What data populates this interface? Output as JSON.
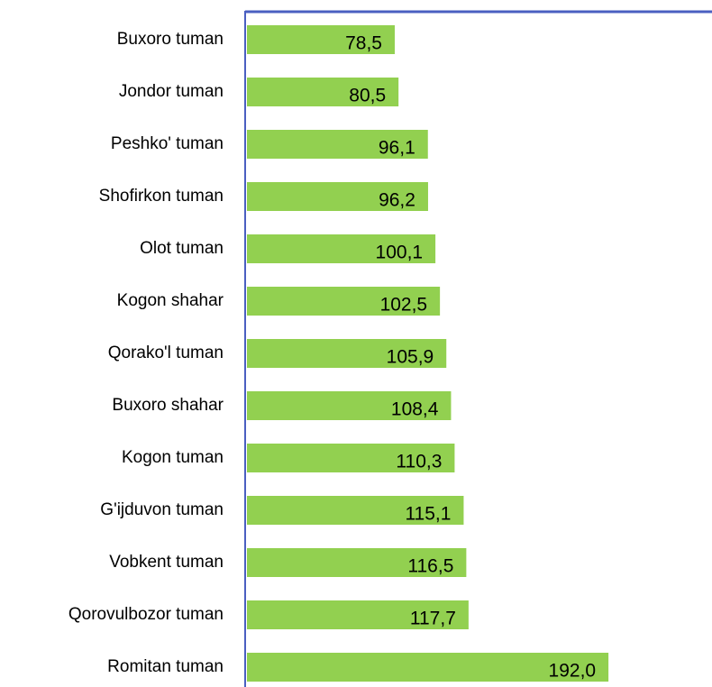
{
  "chart_data": {
    "type": "bar",
    "orientation": "horizontal",
    "categories": [
      "Buxoro tuman",
      "Jondor tuman",
      "Peshko' tuman",
      "Shofirkon tuman",
      "Olot tuman",
      "Kogon shahar",
      "Qorako'l tuman",
      "Buxoro shahar",
      "Kogon tuman",
      "G'ijduvon tuman",
      "Vobkent tuman",
      "Qorovulbozor tuman",
      "Romitan tuman"
    ],
    "values": [
      78.5,
      80.5,
      96.1,
      96.2,
      100.1,
      102.5,
      105.9,
      108.4,
      110.3,
      115.1,
      116.5,
      117.7,
      192.0
    ],
    "value_labels": [
      "78,5",
      "80,5",
      "96,1",
      "96,2",
      "100,1",
      "102,5",
      "105,9",
      "108,4",
      "110,3",
      "115,1",
      "116,5",
      "117,7",
      "192,0"
    ],
    "color": "#92d050",
    "axis_color": "#4a5fc1",
    "xlim": [
      0,
      247
    ]
  }
}
